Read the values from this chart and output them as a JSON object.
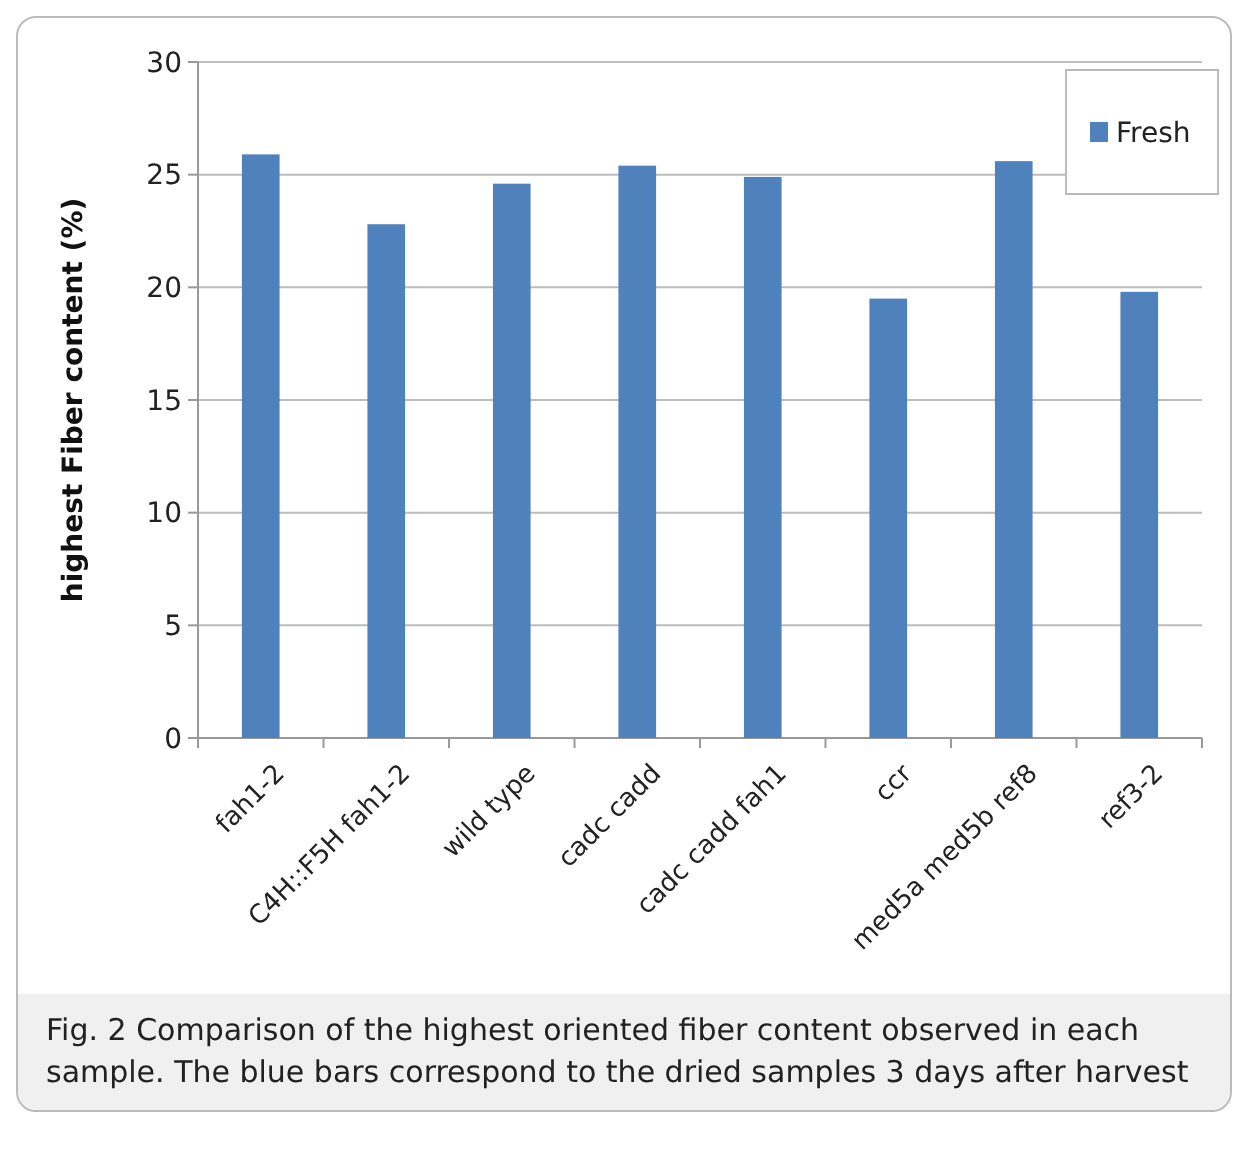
{
  "chart_data": {
    "type": "bar",
    "ylabel": "highest Fiber content (%)",
    "categories": [
      "fah1-2",
      "C4H::F5H fah1-2",
      "wild type",
      "cadc cadd",
      "cadc cadd fah1",
      "ccr",
      "med5a med5b ref8",
      "ref3-2"
    ],
    "series": [
      {
        "name": "Fresh",
        "color": "#4f81bd",
        "values": [
          25.9,
          22.8,
          24.6,
          25.4,
          24.9,
          19.5,
          25.6,
          19.8
        ]
      }
    ],
    "ylim": [
      0,
      30
    ],
    "yticks": [
      0,
      5,
      10,
      15,
      20,
      25,
      30
    ],
    "grid": "y",
    "legend": "top right",
    "annotations": [
      "Fig. 2  Comparison of the highest oriented fiber content observed in each sample. The blue bars correspond to the dried samples 3 days after harvest"
    ]
  }
}
